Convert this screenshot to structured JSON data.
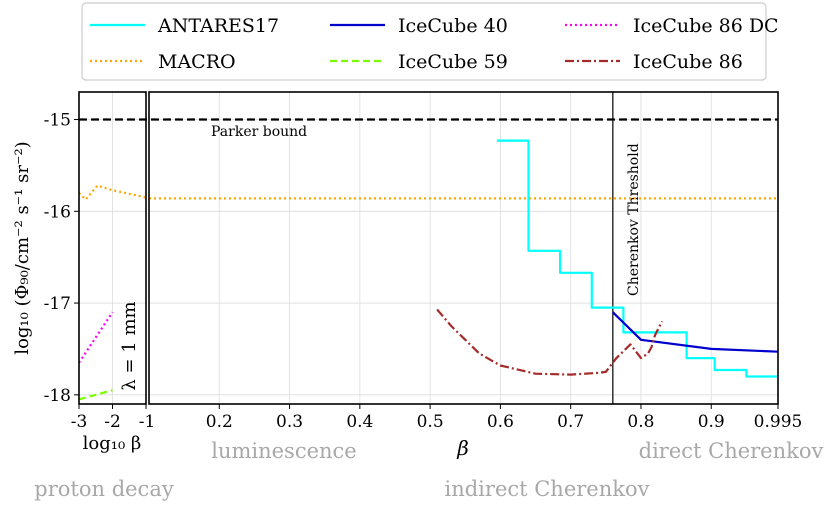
{
  "chart_data": {
    "type": "line",
    "ylabel": "log₁₀ (Φ₉₀/cm⁻² s⁻¹ sr⁻²)",
    "ylim": [
      -18.1,
      -14.7
    ],
    "yticks": [
      -15,
      -16,
      -17,
      -18
    ],
    "ytick_labels": [
      "-15",
      "-16",
      "-17",
      "-18"
    ],
    "parker_bound": {
      "label": "Parker bound",
      "value": -15
    },
    "cherenkov_threshold": {
      "label": "Cherenkov Threshold",
      "beta": 0.76
    },
    "lambda_label": "λ = 1 mm",
    "left_panel": {
      "xlabel": "log₁₀ β",
      "xlim": [
        -3,
        -1
      ],
      "xticks": [
        -3,
        -2,
        -1
      ],
      "xtick_labels": [
        "-3",
        "-2",
        "-1"
      ],
      "region_label": "proton decay"
    },
    "main_panel": {
      "xlabel": "β",
      "xlim": [
        0.1,
        0.995
      ],
      "xticks": [
        0.2,
        0.3,
        0.4,
        0.5,
        0.6,
        0.7,
        0.8,
        0.9,
        0.995
      ],
      "xtick_labels": [
        "0.2",
        "0.3",
        "0.4",
        "0.5",
        "0.6",
        "0.7",
        "0.8",
        "0.9",
        "0.995"
      ],
      "region_labels": {
        "luminescence": "luminescence",
        "indirect": "indirect Cherenkov",
        "direct": "direct Cherenkov"
      }
    },
    "legend": {
      "placement": "top",
      "ncol": 3
    },
    "series": [
      {
        "name": "ANTARES17",
        "color": "#00ffff",
        "style": "solid",
        "step": true,
        "main": [
          [
            0.595,
            -15.23
          ],
          [
            0.64,
            -15.23
          ],
          [
            0.64,
            -16.43
          ],
          [
            0.685,
            -16.43
          ],
          [
            0.685,
            -16.67
          ],
          [
            0.73,
            -16.67
          ],
          [
            0.73,
            -17.05
          ],
          [
            0.775,
            -17.05
          ],
          [
            0.775,
            -17.32
          ],
          [
            0.865,
            -17.32
          ],
          [
            0.865,
            -17.6
          ],
          [
            0.905,
            -17.6
          ],
          [
            0.905,
            -17.73
          ],
          [
            0.95,
            -17.73
          ],
          [
            0.95,
            -17.8
          ],
          [
            0.995,
            -17.8
          ]
        ]
      },
      {
        "name": "MACRO",
        "color": "#ffa500",
        "style": "dotted",
        "left": [
          [
            -3,
            -15.8
          ],
          [
            -2.8,
            -15.87
          ],
          [
            -2.45,
            -15.72
          ],
          [
            -2,
            -15.77
          ],
          [
            -1,
            -15.85
          ]
        ],
        "main": [
          [
            0.1,
            -15.86
          ],
          [
            0.995,
            -15.86
          ]
        ]
      },
      {
        "name": "IceCube 40",
        "color": "#0000cd",
        "style": "solid",
        "main": [
          [
            0.76,
            -17.1
          ],
          [
            0.8,
            -17.4
          ],
          [
            0.9,
            -17.5
          ],
          [
            0.995,
            -17.53
          ]
        ]
      },
      {
        "name": "IceCube 59",
        "color": "#7cfc00",
        "style": "dashed",
        "left": [
          [
            -3,
            -18.05
          ],
          [
            -2,
            -17.95
          ]
        ]
      },
      {
        "name": "IceCube 86 DC",
        "color": "#ff00ff",
        "style": "dotted",
        "left": [
          [
            -3,
            -17.65
          ],
          [
            -2,
            -17.1
          ]
        ]
      },
      {
        "name": "IceCube 86",
        "color": "#a52a2a",
        "style": "dashdot",
        "main": [
          [
            0.51,
            -17.07
          ],
          [
            0.53,
            -17.25
          ],
          [
            0.55,
            -17.4
          ],
          [
            0.57,
            -17.55
          ],
          [
            0.6,
            -17.68
          ],
          [
            0.65,
            -17.77
          ],
          [
            0.7,
            -17.78
          ],
          [
            0.74,
            -17.76
          ],
          [
            0.75,
            -17.75
          ],
          [
            0.765,
            -17.6
          ],
          [
            0.785,
            -17.45
          ],
          [
            0.8,
            -17.6
          ],
          [
            0.81,
            -17.55
          ],
          [
            0.815,
            -17.48
          ],
          [
            0.82,
            -17.35
          ],
          [
            0.83,
            -17.2
          ]
        ]
      }
    ]
  }
}
